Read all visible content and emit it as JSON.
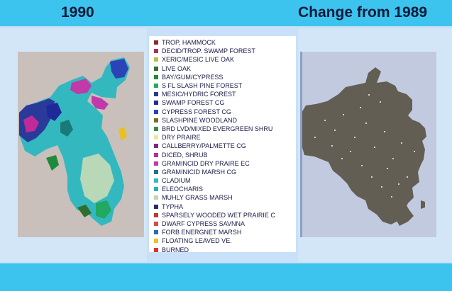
{
  "header": {
    "left_title": "1990",
    "right_title": "Change from 1989"
  },
  "legend": {
    "items": [
      {
        "label": "TROP, HAMMOCK",
        "color": "#8b2a2a"
      },
      {
        "label": "DECID/TROP. SWAMP FOREST",
        "color": "#a8325a"
      },
      {
        "label": "XERIC/MESIC LIVE OAK",
        "color": "#b8c040"
      },
      {
        "label": "LIVE OAK",
        "color": "#2e6e2e"
      },
      {
        "label": "BAY/GUM/CYPRESS",
        "color": "#1e8a3a"
      },
      {
        "label": "S FL SLASH PINE FOREST",
        "color": "#22a860"
      },
      {
        "label": "MESIC/HYDRIC FOREST",
        "color": "#2a3a8a"
      },
      {
        "label": "SWAMP FOREST CG",
        "color": "#1e2a9a"
      },
      {
        "label": "CYPRESS FOREST CG",
        "color": "#2a44b8"
      },
      {
        "label": "SLASHPINE WOODLAND",
        "color": "#7a6a2a"
      },
      {
        "label": "BRD LVD/MIXED EVERGREEN SHRU",
        "color": "#3a8a4a"
      },
      {
        "label": "DRY PRAIRE",
        "color": "#e8e8a0"
      },
      {
        "label": "CALLBERRY/PALMETTE CG",
        "color": "#7a2a8a"
      },
      {
        "label": "DICED, SHRUB",
        "color": "#c02a9a"
      },
      {
        "label": "GRAMINCID DRY PRAIRE EC",
        "color": "#c03aaa"
      },
      {
        "label": "GRAMINICID MARSH CG",
        "color": "#1a7a7a"
      },
      {
        "label": "CLADIUM",
        "color": "#30b8c0"
      },
      {
        "label": "ELEOCHARIS",
        "color": "#2ab0b0"
      },
      {
        "label": "MUHLY GRASS MARSH",
        "color": "#b8d8b8"
      },
      {
        "label": "TYPHA",
        "color": "#2a2a6a"
      },
      {
        "label": "SPARSELY WOODED WET PRAIRIE C",
        "color": "#c03a2a"
      },
      {
        "label": "DWARF CYPRESS SAVNNA",
        "color": "#d84a4a"
      },
      {
        "label": "FORB ENERGNET MARSH",
        "color": "#2a6ab8"
      },
      {
        "label": "FLOATING LEAVED VE.",
        "color": "#e8c020"
      },
      {
        "label": "BURNED",
        "color": "#e03030"
      }
    ]
  }
}
